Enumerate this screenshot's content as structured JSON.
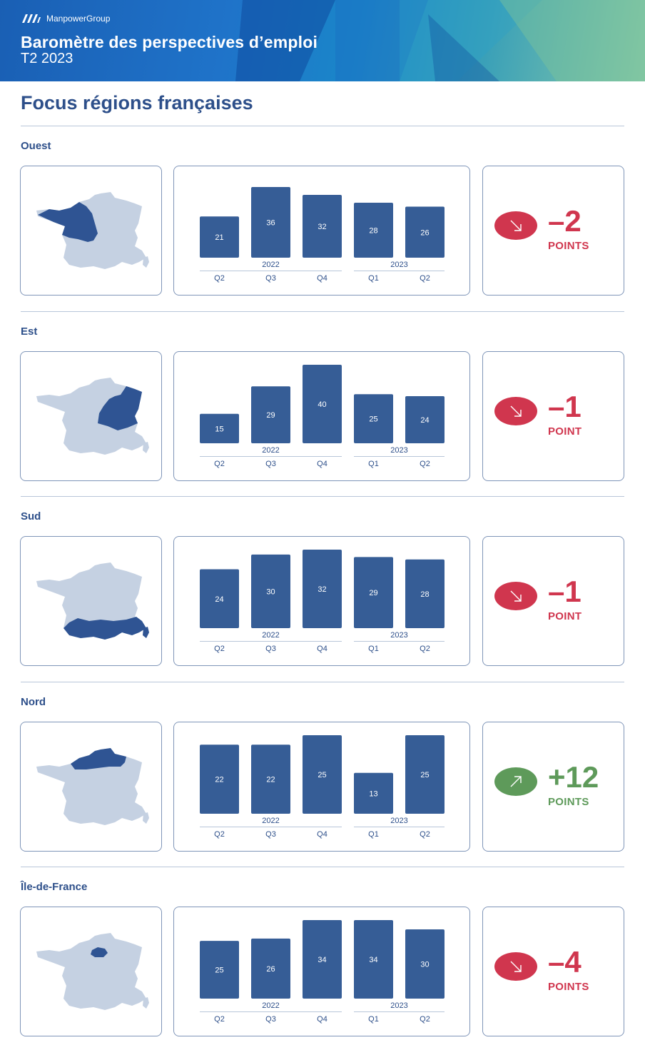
{
  "header": {
    "brand": "ManpowerGroup",
    "title": "Baromètre des perspectives d’emploi",
    "subtitle": "T2 2023"
  },
  "page_title": "Focus régions françaises",
  "colors": {
    "bar": "#365d96",
    "map_base": "#c5d1e2",
    "map_highlight": "#2f5493",
    "negative": "#d0364e",
    "positive": "#5e9a5a"
  },
  "regions": [
    {
      "name": "Ouest",
      "highlight": "ouest",
      "delta": "-2",
      "delta_unit": "POINTS",
      "trend": "down"
    },
    {
      "name": "Est",
      "highlight": "est",
      "delta": "-1",
      "delta_unit": "POINT",
      "trend": "down"
    },
    {
      "name": "Sud",
      "highlight": "sud",
      "delta": "-1",
      "delta_unit": "POINT",
      "trend": "down"
    },
    {
      "name": "Nord",
      "highlight": "nord",
      "delta": "+12",
      "delta_unit": "POINTS",
      "trend": "up"
    },
    {
      "name": "Île-de-France",
      "highlight": "idf",
      "delta": "-4",
      "delta_unit": "POINTS",
      "trend": "down"
    }
  ],
  "chart_data": [
    {
      "type": "bar",
      "title": "Ouest",
      "categories": [
        "Q2",
        "Q3",
        "Q4",
        "Q1",
        "Q2"
      ],
      "year_groups": [
        {
          "label": "2022",
          "span": [
            0,
            2
          ]
        },
        {
          "label": "2023",
          "span": [
            3,
            4
          ]
        }
      ],
      "values": [
        21,
        36,
        32,
        28,
        26
      ],
      "ylim": [
        0,
        40
      ]
    },
    {
      "type": "bar",
      "title": "Est",
      "categories": [
        "Q2",
        "Q3",
        "Q4",
        "Q1",
        "Q2"
      ],
      "year_groups": [
        {
          "label": "2022",
          "span": [
            0,
            2
          ]
        },
        {
          "label": "2023",
          "span": [
            3,
            4
          ]
        }
      ],
      "values": [
        15,
        29,
        40,
        25,
        24
      ],
      "ylim": [
        0,
        40
      ]
    },
    {
      "type": "bar",
      "title": "Sud",
      "categories": [
        "Q2",
        "Q3",
        "Q4",
        "Q1",
        "Q2"
      ],
      "year_groups": [
        {
          "label": "2022",
          "span": [
            0,
            2
          ]
        },
        {
          "label": "2023",
          "span": [
            3,
            4
          ]
        }
      ],
      "values": [
        24,
        30,
        32,
        29,
        28
      ],
      "ylim": [
        0,
        32
      ]
    },
    {
      "type": "bar",
      "title": "Nord",
      "categories": [
        "Q2",
        "Q3",
        "Q4",
        "Q1",
        "Q2"
      ],
      "year_groups": [
        {
          "label": "2022",
          "span": [
            0,
            2
          ]
        },
        {
          "label": "2023",
          "span": [
            3,
            4
          ]
        }
      ],
      "values": [
        22,
        22,
        25,
        13,
        25
      ],
      "ylim": [
        0,
        25
      ]
    },
    {
      "type": "bar",
      "title": "Île-de-France",
      "categories": [
        "Q2",
        "Q3",
        "Q4",
        "Q1",
        "Q2"
      ],
      "year_groups": [
        {
          "label": "2022",
          "span": [
            0,
            2
          ]
        },
        {
          "label": "2023",
          "span": [
            3,
            4
          ]
        }
      ],
      "values": [
        25,
        26,
        34,
        34,
        30
      ],
      "ylim": [
        0,
        34
      ]
    }
  ]
}
